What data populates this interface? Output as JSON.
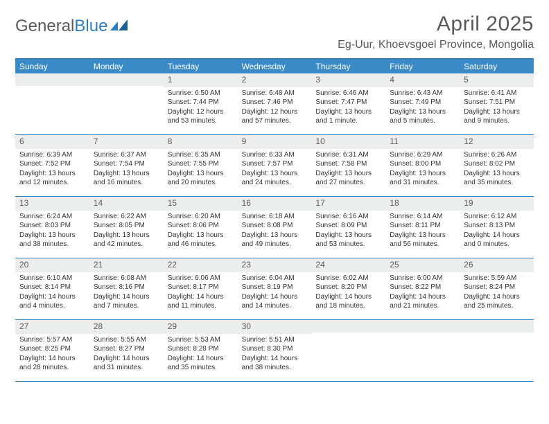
{
  "logo": {
    "part1": "General",
    "part2": "Blue"
  },
  "title": "April 2025",
  "location": "Eg-Uur, Khoevsgoel Province, Mongolia",
  "colors": {
    "header_bg": "#3a8ac7",
    "header_text": "#ffffff",
    "rule": "#2f7ec0",
    "daynum_bg": "#eceded",
    "text": "#333333",
    "muted": "#5a5a5a"
  },
  "dayNames": [
    "Sunday",
    "Monday",
    "Tuesday",
    "Wednesday",
    "Thursday",
    "Friday",
    "Saturday"
  ],
  "weeks": [
    [
      {
        "n": "",
        "sr": "",
        "ss": "",
        "dl": ""
      },
      {
        "n": "",
        "sr": "",
        "ss": "",
        "dl": ""
      },
      {
        "n": "1",
        "sr": "Sunrise: 6:50 AM",
        "ss": "Sunset: 7:44 PM",
        "dl": "Daylight: 12 hours and 53 minutes."
      },
      {
        "n": "2",
        "sr": "Sunrise: 6:48 AM",
        "ss": "Sunset: 7:46 PM",
        "dl": "Daylight: 12 hours and 57 minutes."
      },
      {
        "n": "3",
        "sr": "Sunrise: 6:46 AM",
        "ss": "Sunset: 7:47 PM",
        "dl": "Daylight: 13 hours and 1 minute."
      },
      {
        "n": "4",
        "sr": "Sunrise: 6:43 AM",
        "ss": "Sunset: 7:49 PM",
        "dl": "Daylight: 13 hours and 5 minutes."
      },
      {
        "n": "5",
        "sr": "Sunrise: 6:41 AM",
        "ss": "Sunset: 7:51 PM",
        "dl": "Daylight: 13 hours and 9 minutes."
      }
    ],
    [
      {
        "n": "6",
        "sr": "Sunrise: 6:39 AM",
        "ss": "Sunset: 7:52 PM",
        "dl": "Daylight: 13 hours and 12 minutes."
      },
      {
        "n": "7",
        "sr": "Sunrise: 6:37 AM",
        "ss": "Sunset: 7:54 PM",
        "dl": "Daylight: 13 hours and 16 minutes."
      },
      {
        "n": "8",
        "sr": "Sunrise: 6:35 AM",
        "ss": "Sunset: 7:55 PM",
        "dl": "Daylight: 13 hours and 20 minutes."
      },
      {
        "n": "9",
        "sr": "Sunrise: 6:33 AM",
        "ss": "Sunset: 7:57 PM",
        "dl": "Daylight: 13 hours and 24 minutes."
      },
      {
        "n": "10",
        "sr": "Sunrise: 6:31 AM",
        "ss": "Sunset: 7:58 PM",
        "dl": "Daylight: 13 hours and 27 minutes."
      },
      {
        "n": "11",
        "sr": "Sunrise: 6:29 AM",
        "ss": "Sunset: 8:00 PM",
        "dl": "Daylight: 13 hours and 31 minutes."
      },
      {
        "n": "12",
        "sr": "Sunrise: 6:26 AM",
        "ss": "Sunset: 8:02 PM",
        "dl": "Daylight: 13 hours and 35 minutes."
      }
    ],
    [
      {
        "n": "13",
        "sr": "Sunrise: 6:24 AM",
        "ss": "Sunset: 8:03 PM",
        "dl": "Daylight: 13 hours and 38 minutes."
      },
      {
        "n": "14",
        "sr": "Sunrise: 6:22 AM",
        "ss": "Sunset: 8:05 PM",
        "dl": "Daylight: 13 hours and 42 minutes."
      },
      {
        "n": "15",
        "sr": "Sunrise: 6:20 AM",
        "ss": "Sunset: 8:06 PM",
        "dl": "Daylight: 13 hours and 46 minutes."
      },
      {
        "n": "16",
        "sr": "Sunrise: 6:18 AM",
        "ss": "Sunset: 8:08 PM",
        "dl": "Daylight: 13 hours and 49 minutes."
      },
      {
        "n": "17",
        "sr": "Sunrise: 6:16 AM",
        "ss": "Sunset: 8:09 PM",
        "dl": "Daylight: 13 hours and 53 minutes."
      },
      {
        "n": "18",
        "sr": "Sunrise: 6:14 AM",
        "ss": "Sunset: 8:11 PM",
        "dl": "Daylight: 13 hours and 56 minutes."
      },
      {
        "n": "19",
        "sr": "Sunrise: 6:12 AM",
        "ss": "Sunset: 8:13 PM",
        "dl": "Daylight: 14 hours and 0 minutes."
      }
    ],
    [
      {
        "n": "20",
        "sr": "Sunrise: 6:10 AM",
        "ss": "Sunset: 8:14 PM",
        "dl": "Daylight: 14 hours and 4 minutes."
      },
      {
        "n": "21",
        "sr": "Sunrise: 6:08 AM",
        "ss": "Sunset: 8:16 PM",
        "dl": "Daylight: 14 hours and 7 minutes."
      },
      {
        "n": "22",
        "sr": "Sunrise: 6:06 AM",
        "ss": "Sunset: 8:17 PM",
        "dl": "Daylight: 14 hours and 11 minutes."
      },
      {
        "n": "23",
        "sr": "Sunrise: 6:04 AM",
        "ss": "Sunset: 8:19 PM",
        "dl": "Daylight: 14 hours and 14 minutes."
      },
      {
        "n": "24",
        "sr": "Sunrise: 6:02 AM",
        "ss": "Sunset: 8:20 PM",
        "dl": "Daylight: 14 hours and 18 minutes."
      },
      {
        "n": "25",
        "sr": "Sunrise: 6:00 AM",
        "ss": "Sunset: 8:22 PM",
        "dl": "Daylight: 14 hours and 21 minutes."
      },
      {
        "n": "26",
        "sr": "Sunrise: 5:59 AM",
        "ss": "Sunset: 8:24 PM",
        "dl": "Daylight: 14 hours and 25 minutes."
      }
    ],
    [
      {
        "n": "27",
        "sr": "Sunrise: 5:57 AM",
        "ss": "Sunset: 8:25 PM",
        "dl": "Daylight: 14 hours and 28 minutes."
      },
      {
        "n": "28",
        "sr": "Sunrise: 5:55 AM",
        "ss": "Sunset: 8:27 PM",
        "dl": "Daylight: 14 hours and 31 minutes."
      },
      {
        "n": "29",
        "sr": "Sunrise: 5:53 AM",
        "ss": "Sunset: 8:28 PM",
        "dl": "Daylight: 14 hours and 35 minutes."
      },
      {
        "n": "30",
        "sr": "Sunrise: 5:51 AM",
        "ss": "Sunset: 8:30 PM",
        "dl": "Daylight: 14 hours and 38 minutes."
      },
      {
        "n": "",
        "sr": "",
        "ss": "",
        "dl": ""
      },
      {
        "n": "",
        "sr": "",
        "ss": "",
        "dl": ""
      },
      {
        "n": "",
        "sr": "",
        "ss": "",
        "dl": ""
      }
    ]
  ]
}
